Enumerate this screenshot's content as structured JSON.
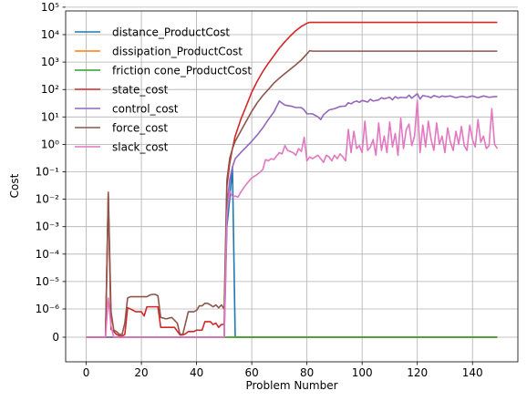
{
  "chart_data": {
    "type": "line",
    "title": "",
    "xlabel": "Problem Number",
    "ylabel": "Cost",
    "xlim": [
      -7.45,
      156.45
    ],
    "xticks": [
      0,
      20,
      40,
      60,
      80,
      100,
      120,
      140
    ],
    "xtick_labels": [
      "0",
      "20",
      "40",
      "60",
      "80",
      "100",
      "120",
      "140"
    ],
    "yscale": "symlog",
    "ytick_labels": [
      "0",
      "10⁻⁶",
      "10⁻⁵",
      "10⁻⁴",
      "10⁻³",
      "10⁻²",
      "10⁻¹",
      "10⁰",
      "10¹",
      "10²",
      "10³",
      "10⁴",
      "10⁵"
    ],
    "grid": true,
    "legend_position": "upper-left",
    "series": [
      {
        "name": "distance_ProductCost",
        "color": "#1f77b4",
        "points": [
          [
            0,
            0
          ],
          [
            50,
            0
          ],
          [
            51,
            0.001
          ],
          [
            52,
            0.01
          ],
          [
            53,
            0.15
          ],
          [
            54,
            0
          ],
          [
            149,
            0
          ]
        ]
      },
      {
        "name": "dissipation_ProductCost",
        "color": "#ff7f0e",
        "points": [
          [
            0,
            0
          ],
          [
            149,
            0
          ]
        ]
      },
      {
        "name": "friction cone_ProductCost",
        "color": "#2ca02c",
        "points": [
          [
            0,
            0
          ],
          [
            149,
            0
          ]
        ]
      },
      {
        "name": "state_cost",
        "color": "#d62728",
        "points": [
          [
            0,
            0
          ],
          [
            7,
            0
          ],
          [
            8,
            0.015
          ],
          [
            9,
            2.8e-07
          ],
          [
            10,
            2e-07
          ],
          [
            11,
            1e-07
          ],
          [
            12,
            5e-08
          ],
          [
            13,
            4e-08
          ],
          [
            14,
            1e-07
          ],
          [
            15,
            1.1e-06
          ],
          [
            16,
            1e-06
          ],
          [
            18,
            9e-07
          ],
          [
            20,
            9e-07
          ],
          [
            21,
            7.5e-07
          ],
          [
            22,
            1.2e-06
          ],
          [
            24,
            1.2e-06
          ],
          [
            26,
            1.2e-06
          ],
          [
            27,
            3.5e-07
          ],
          [
            28,
            3.5e-07
          ],
          [
            31,
            3.5e-07
          ],
          [
            32,
            3.5e-07
          ],
          [
            34,
            8e-08
          ],
          [
            35,
            8e-08
          ],
          [
            36,
            1.2e-07
          ],
          [
            37,
            2e-07
          ],
          [
            39,
            2e-07
          ],
          [
            40,
            2.5e-07
          ],
          [
            42,
            2.5e-07
          ],
          [
            43,
            5.5e-07
          ],
          [
            45,
            5.5e-07
          ],
          [
            46,
            4.5e-07
          ],
          [
            47,
            5e-07
          ],
          [
            48,
            3.5e-07
          ],
          [
            49,
            4.5e-07
          ],
          [
            50,
            4.5e-07
          ],
          [
            51,
            0.03
          ],
          [
            52,
            0.2
          ],
          [
            53,
            0.7
          ],
          [
            54,
            2
          ],
          [
            56,
            8
          ],
          [
            58,
            25
          ],
          [
            60,
            80
          ],
          [
            62,
            200
          ],
          [
            64,
            450
          ],
          [
            66,
            900
          ],
          [
            68,
            1700
          ],
          [
            70,
            3200
          ],
          [
            72,
            5500
          ],
          [
            74,
            9000
          ],
          [
            76,
            14000
          ],
          [
            78,
            20000
          ],
          [
            80,
            26000
          ],
          [
            81,
            28000
          ],
          [
            149,
            28000
          ]
        ]
      },
      {
        "name": "control_cost",
        "color": "#9467bd",
        "points": [
          [
            0,
            0
          ],
          [
            50,
            0
          ],
          [
            51,
            0.005
          ],
          [
            52,
            0.05
          ],
          [
            53,
            0.15
          ],
          [
            54,
            0.3
          ],
          [
            56,
            0.5
          ],
          [
            58,
            0.8
          ],
          [
            60,
            1.3
          ],
          [
            62,
            2.2
          ],
          [
            64,
            4
          ],
          [
            66,
            8
          ],
          [
            68,
            15
          ],
          [
            70,
            38
          ],
          [
            71,
            32
          ],
          [
            72,
            27
          ],
          [
            74,
            25
          ],
          [
            76,
            22
          ],
          [
            78,
            22
          ],
          [
            79,
            18
          ],
          [
            80,
            13
          ],
          [
            82,
            13
          ],
          [
            84,
            10
          ],
          [
            85,
            8
          ],
          [
            86,
            12
          ],
          [
            88,
            18
          ],
          [
            90,
            20
          ],
          [
            92,
            24
          ],
          [
            94,
            25
          ],
          [
            95,
            33
          ],
          [
            96,
            30
          ],
          [
            97,
            35
          ],
          [
            98,
            38
          ],
          [
            99,
            34
          ],
          [
            100,
            40
          ],
          [
            102,
            35
          ],
          [
            103,
            44
          ],
          [
            104,
            38
          ],
          [
            106,
            42
          ],
          [
            107,
            50
          ],
          [
            108,
            46
          ],
          [
            110,
            52
          ],
          [
            111,
            42
          ],
          [
            112,
            55
          ],
          [
            113,
            48
          ],
          [
            114,
            52
          ],
          [
            116,
            50
          ],
          [
            117,
            62
          ],
          [
            118,
            48
          ],
          [
            120,
            70
          ],
          [
            121,
            45
          ],
          [
            122,
            60
          ],
          [
            124,
            55
          ],
          [
            125,
            50
          ],
          [
            126,
            60
          ],
          [
            128,
            52
          ],
          [
            129,
            58
          ],
          [
            130,
            55
          ],
          [
            132,
            58
          ],
          [
            134,
            50
          ],
          [
            136,
            56
          ],
          [
            138,
            52
          ],
          [
            140,
            58
          ],
          [
            142,
            50
          ],
          [
            144,
            58
          ],
          [
            146,
            52
          ],
          [
            148,
            55
          ],
          [
            149,
            55
          ]
        ]
      },
      {
        "name": "force_cost",
        "color": "#8c564b",
        "points": [
          [
            0,
            0
          ],
          [
            7,
            0
          ],
          [
            8,
            0.018
          ],
          [
            9,
            9e-07
          ],
          [
            10,
            2.5e-07
          ],
          [
            11,
            2e-07
          ],
          [
            12,
            1e-07
          ],
          [
            13,
            1e-07
          ],
          [
            14,
            5e-07
          ],
          [
            15,
            2.5e-06
          ],
          [
            16,
            2.8e-06
          ],
          [
            18,
            2.8e-06
          ],
          [
            20,
            2.8e-06
          ],
          [
            22,
            2.8e-06
          ],
          [
            23,
            3.2e-06
          ],
          [
            24,
            3.4e-06
          ],
          [
            25,
            3.4e-06
          ],
          [
            26,
            3e-06
          ],
          [
            27,
            7e-07
          ],
          [
            29,
            6.5e-07
          ],
          [
            31,
            7e-07
          ],
          [
            33,
            5e-07
          ],
          [
            34,
            1e-07
          ],
          [
            35,
            1e-07
          ],
          [
            36,
            5e-07
          ],
          [
            37,
            9e-07
          ],
          [
            39,
            9e-07
          ],
          [
            40,
            9.5e-07
          ],
          [
            41,
            1.3e-06
          ],
          [
            42,
            1.3e-06
          ],
          [
            43,
            1.6e-06
          ],
          [
            44,
            1.6e-06
          ],
          [
            45,
            1.4e-06
          ],
          [
            46,
            1.2e-06
          ],
          [
            47,
            1.4e-06
          ],
          [
            48,
            1.1e-06
          ],
          [
            49,
            1.4e-06
          ],
          [
            50,
            1e-06
          ],
          [
            51,
            0.05
          ],
          [
            52,
            0.3
          ],
          [
            53,
            0.7
          ],
          [
            54,
            1.3
          ],
          [
            56,
            3
          ],
          [
            58,
            7
          ],
          [
            60,
            16
          ],
          [
            62,
            33
          ],
          [
            64,
            60
          ],
          [
            66,
            100
          ],
          [
            68,
            170
          ],
          [
            70,
            260
          ],
          [
            72,
            380
          ],
          [
            74,
            550
          ],
          [
            76,
            800
          ],
          [
            78,
            1200
          ],
          [
            80,
            2000
          ],
          [
            81,
            2600
          ],
          [
            82,
            2500
          ],
          [
            149,
            2500
          ]
        ]
      },
      {
        "name": "slack_cost",
        "color": "#e377c2",
        "points": [
          [
            0,
            0
          ],
          [
            7,
            0
          ],
          [
            8,
            2.5e-06
          ],
          [
            9,
            4e-07
          ],
          [
            10,
            0
          ],
          [
            50,
            0
          ],
          [
            51,
            0.003
          ],
          [
            52,
            0.02
          ],
          [
            53,
            0.012
          ],
          [
            54,
            0.013
          ],
          [
            55,
            0.012
          ],
          [
            56,
            0.018
          ],
          [
            58,
            0.035
          ],
          [
            60,
            0.06
          ],
          [
            62,
            0.08
          ],
          [
            64,
            0.12
          ],
          [
            65,
            0.28
          ],
          [
            66,
            0.25
          ],
          [
            67,
            0.3
          ],
          [
            68,
            0.28
          ],
          [
            70,
            0.5
          ],
          [
            71,
            0.45
          ],
          [
            72,
            0.9
          ],
          [
            73,
            0.6
          ],
          [
            74,
            0.55
          ],
          [
            75,
            0.5
          ],
          [
            76,
            0.4
          ],
          [
            77,
            0.7
          ],
          [
            78,
            0.55
          ],
          [
            79,
            1.8
          ],
          [
            80,
            0.25
          ],
          [
            81,
            0.35
          ],
          [
            82,
            0.3
          ],
          [
            83,
            0.35
          ],
          [
            84,
            0.4
          ],
          [
            85,
            0.3
          ],
          [
            86,
            0.22
          ],
          [
            87,
            0.4
          ],
          [
            88,
            0.35
          ],
          [
            89,
            0.25
          ],
          [
            90,
            0.4
          ],
          [
            91,
            0.3
          ],
          [
            92,
            0.45
          ],
          [
            93,
            0.35
          ],
          [
            94,
            0.25
          ],
          [
            95,
            3.5
          ],
          [
            96,
            0.5
          ],
          [
            97,
            3
          ],
          [
            98,
            0.7
          ],
          [
            99,
            0.9
          ],
          [
            100,
            0.5
          ],
          [
            101,
            7
          ],
          [
            102,
            0.6
          ],
          [
            103,
            0.8
          ],
          [
            104,
            1.5
          ],
          [
            105,
            0.4
          ],
          [
            106,
            6
          ],
          [
            107,
            0.6
          ],
          [
            108,
            2
          ],
          [
            109,
            0.5
          ],
          [
            110,
            6.5
          ],
          [
            111,
            0.8
          ],
          [
            112,
            2.5
          ],
          [
            113,
            0.4
          ],
          [
            114,
            9
          ],
          [
            115,
            0.7
          ],
          [
            116,
            3.5
          ],
          [
            117,
            5.5
          ],
          [
            118,
            0.9
          ],
          [
            119,
            2
          ],
          [
            120,
            40
          ],
          [
            121,
            0.5
          ],
          [
            122,
            5
          ],
          [
            123,
            0.8
          ],
          [
            124,
            7
          ],
          [
            125,
            1.5
          ],
          [
            126,
            0.6
          ],
          [
            127,
            6
          ],
          [
            128,
            1
          ],
          [
            129,
            2
          ],
          [
            130,
            0.5
          ],
          [
            131,
            4
          ],
          [
            132,
            1.2
          ],
          [
            133,
            0.6
          ],
          [
            134,
            3
          ],
          [
            135,
            1
          ],
          [
            136,
            4.5
          ],
          [
            137,
            0.9
          ],
          [
            138,
            0.6
          ],
          [
            139,
            5
          ],
          [
            140,
            1.5
          ],
          [
            141,
            0.8
          ],
          [
            142,
            8
          ],
          [
            143,
            1.2
          ],
          [
            144,
            2
          ],
          [
            145,
            0.7
          ],
          [
            146,
            0.9
          ],
          [
            147,
            20
          ],
          [
            148,
            1
          ],
          [
            149,
            0.7
          ]
        ]
      }
    ]
  }
}
